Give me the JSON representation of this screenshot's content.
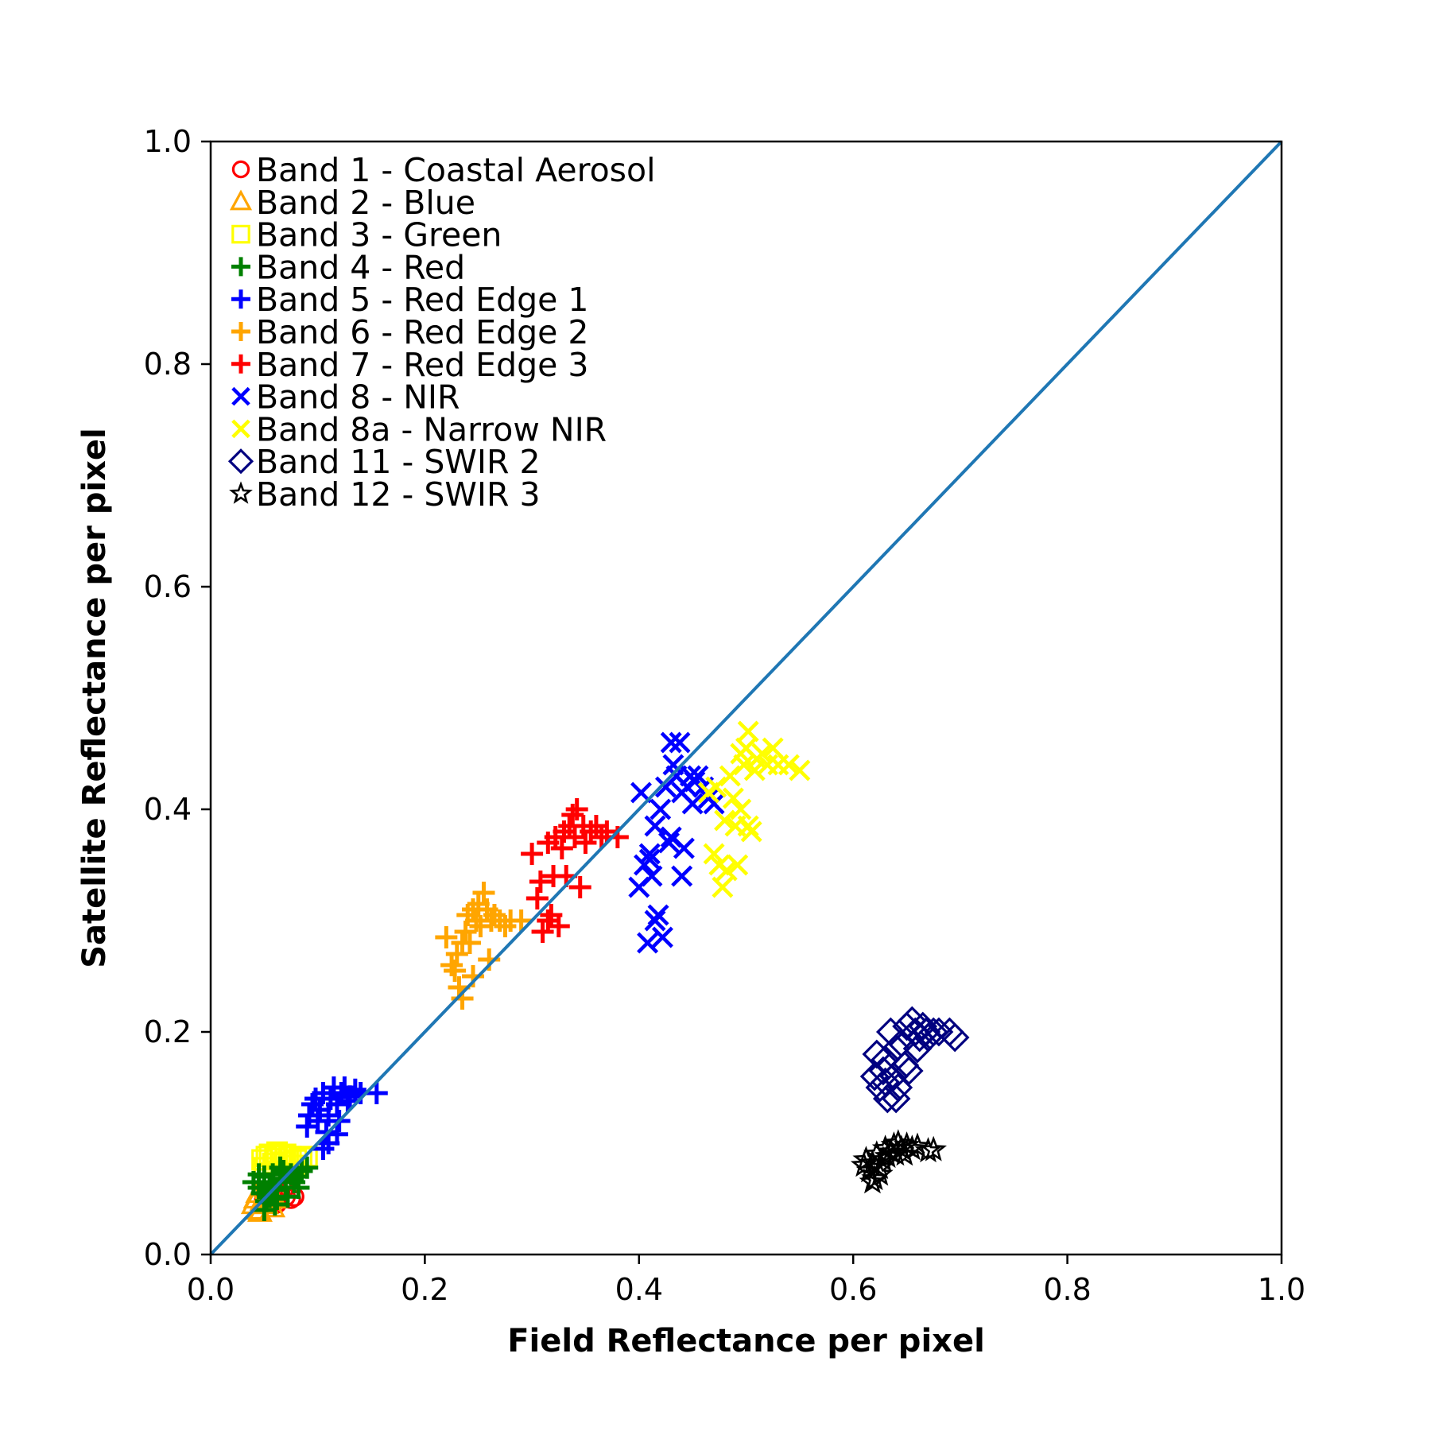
{
  "chart_data": {
    "type": "scatter",
    "title": "",
    "xlabel": "Field Reflectance per pixel",
    "ylabel": "Satellite Reflectance per pixel",
    "xlim": [
      0,
      1
    ],
    "ylim": [
      0,
      1
    ],
    "xticks": [
      "0.0",
      "0.2",
      "0.4",
      "0.6",
      "0.8",
      "1.0"
    ],
    "yticks": [
      "0.0",
      "0.2",
      "0.4",
      "0.6",
      "0.8",
      "1.0"
    ],
    "grid": false,
    "legend_position": "top-left",
    "reference_line": {
      "from": [
        0,
        0
      ],
      "to": [
        1,
        1
      ],
      "color": "#1f77b4"
    },
    "series": [
      {
        "name": "Band 1 - Coastal Aerosol",
        "marker": "circle",
        "color": "#ff0000",
        "points": [
          [
            0.05,
            0.05
          ],
          [
            0.055,
            0.052
          ],
          [
            0.06,
            0.048
          ],
          [
            0.065,
            0.055
          ],
          [
            0.07,
            0.052
          ],
          [
            0.075,
            0.05
          ],
          [
            0.078,
            0.052
          ],
          [
            0.058,
            0.057
          ],
          [
            0.062,
            0.046
          ],
          [
            0.068,
            0.058
          ]
        ]
      },
      {
        "name": "Band 2 - Blue",
        "marker": "triangle",
        "color": "#ffa500",
        "points": [
          [
            0.04,
            0.045
          ],
          [
            0.042,
            0.05
          ],
          [
            0.045,
            0.04
          ],
          [
            0.048,
            0.048
          ],
          [
            0.05,
            0.052
          ],
          [
            0.052,
            0.045
          ],
          [
            0.055,
            0.055
          ],
          [
            0.058,
            0.042
          ],
          [
            0.06,
            0.05
          ],
          [
            0.062,
            0.058
          ],
          [
            0.046,
            0.038
          ],
          [
            0.044,
            0.055
          ]
        ]
      },
      {
        "name": "Band 3 - Green",
        "marker": "square",
        "color": "#ffff00",
        "points": [
          [
            0.048,
            0.085
          ],
          [
            0.052,
            0.088
          ],
          [
            0.055,
            0.09
          ],
          [
            0.06,
            0.086
          ],
          [
            0.065,
            0.089
          ],
          [
            0.07,
            0.09
          ],
          [
            0.075,
            0.088
          ],
          [
            0.08,
            0.085
          ],
          [
            0.085,
            0.087
          ],
          [
            0.05,
            0.078
          ],
          [
            0.058,
            0.082
          ],
          [
            0.068,
            0.083
          ],
          [
            0.078,
            0.08
          ],
          [
            0.09,
            0.088
          ],
          [
            0.062,
            0.092
          ]
        ]
      },
      {
        "name": "Band 4 - Red",
        "marker": "plus",
        "color": "#008000",
        "points": [
          [
            0.04,
            0.065
          ],
          [
            0.045,
            0.06
          ],
          [
            0.048,
            0.055
          ],
          [
            0.05,
            0.07
          ],
          [
            0.052,
            0.048
          ],
          [
            0.055,
            0.062
          ],
          [
            0.058,
            0.072
          ],
          [
            0.06,
            0.058
          ],
          [
            0.062,
            0.05
          ],
          [
            0.065,
            0.068
          ],
          [
            0.068,
            0.075
          ],
          [
            0.07,
            0.06
          ],
          [
            0.072,
            0.052
          ],
          [
            0.075,
            0.072
          ],
          [
            0.078,
            0.065
          ],
          [
            0.08,
            0.07
          ],
          [
            0.085,
            0.075
          ],
          [
            0.09,
            0.078
          ],
          [
            0.05,
            0.04
          ],
          [
            0.055,
            0.052
          ],
          [
            0.06,
            0.045
          ],
          [
            0.065,
            0.078
          ],
          [
            0.07,
            0.068
          ],
          [
            0.082,
            0.06
          ],
          [
            0.045,
            0.072
          ],
          [
            0.058,
            0.065
          ]
        ]
      },
      {
        "name": "Band 5 - Red Edge 1",
        "marker": "plus",
        "color": "#0000ff",
        "points": [
          [
            0.09,
            0.115
          ],
          [
            0.092,
            0.125
          ],
          [
            0.095,
            0.135
          ],
          [
            0.098,
            0.14
          ],
          [
            0.1,
            0.12
          ],
          [
            0.102,
            0.13
          ],
          [
            0.105,
            0.145
          ],
          [
            0.108,
            0.11
          ],
          [
            0.11,
            0.125
          ],
          [
            0.112,
            0.14
          ],
          [
            0.115,
            0.15
          ],
          [
            0.118,
            0.135
          ],
          [
            0.12,
            0.12
          ],
          [
            0.122,
            0.145
          ],
          [
            0.125,
            0.15
          ],
          [
            0.128,
            0.138
          ],
          [
            0.13,
            0.142
          ],
          [
            0.135,
            0.148
          ],
          [
            0.14,
            0.145
          ],
          [
            0.155,
            0.145
          ],
          [
            0.11,
            0.1
          ],
          [
            0.118,
            0.108
          ],
          [
            0.105,
            0.095
          ]
        ]
      },
      {
        "name": "Band 6 - Red Edge 2",
        "marker": "plus",
        "color": "#ffa500",
        "points": [
          [
            0.22,
            0.285
          ],
          [
            0.225,
            0.26
          ],
          [
            0.228,
            0.255
          ],
          [
            0.23,
            0.27
          ],
          [
            0.232,
            0.24
          ],
          [
            0.235,
            0.23
          ],
          [
            0.238,
            0.29
          ],
          [
            0.24,
            0.305
          ],
          [
            0.242,
            0.28
          ],
          [
            0.245,
            0.31
          ],
          [
            0.248,
            0.3
          ],
          [
            0.25,
            0.315
          ],
          [
            0.252,
            0.295
          ],
          [
            0.255,
            0.325
          ],
          [
            0.258,
            0.31
          ],
          [
            0.26,
            0.265
          ],
          [
            0.262,
            0.3
          ],
          [
            0.265,
            0.305
          ],
          [
            0.27,
            0.3
          ],
          [
            0.275,
            0.295
          ],
          [
            0.28,
            0.3
          ],
          [
            0.29,
            0.3
          ],
          [
            0.245,
            0.25
          ],
          [
            0.235,
            0.28
          ]
        ]
      },
      {
        "name": "Band 7 - Red Edge 3",
        "marker": "plus",
        "color": "#ff0000",
        "points": [
          [
            0.3,
            0.36
          ],
          [
            0.305,
            0.32
          ],
          [
            0.308,
            0.335
          ],
          [
            0.31,
            0.29
          ],
          [
            0.315,
            0.37
          ],
          [
            0.318,
            0.305
          ],
          [
            0.32,
            0.34
          ],
          [
            0.322,
            0.375
          ],
          [
            0.325,
            0.295
          ],
          [
            0.328,
            0.365
          ],
          [
            0.33,
            0.38
          ],
          [
            0.332,
            0.34
          ],
          [
            0.335,
            0.385
          ],
          [
            0.338,
            0.395
          ],
          [
            0.34,
            0.375
          ],
          [
            0.342,
            0.4
          ],
          [
            0.345,
            0.33
          ],
          [
            0.348,
            0.385
          ],
          [
            0.35,
            0.37
          ],
          [
            0.355,
            0.38
          ],
          [
            0.36,
            0.385
          ],
          [
            0.365,
            0.375
          ],
          [
            0.37,
            0.38
          ],
          [
            0.38,
            0.375
          ],
          [
            0.315,
            0.3
          ]
        ]
      },
      {
        "name": "Band 8 - NIR",
        "marker": "x",
        "color": "#0000ff",
        "points": [
          [
            0.4,
            0.33
          ],
          [
            0.402,
            0.415
          ],
          [
            0.405,
            0.35
          ],
          [
            0.408,
            0.28
          ],
          [
            0.41,
            0.36
          ],
          [
            0.412,
            0.34
          ],
          [
            0.415,
            0.385
          ],
          [
            0.418,
            0.305
          ],
          [
            0.42,
            0.4
          ],
          [
            0.422,
            0.285
          ],
          [
            0.425,
            0.42
          ],
          [
            0.428,
            0.37
          ],
          [
            0.43,
            0.46
          ],
          [
            0.432,
            0.44
          ],
          [
            0.435,
            0.43
          ],
          [
            0.438,
            0.46
          ],
          [
            0.44,
            0.415
          ],
          [
            0.442,
            0.365
          ],
          [
            0.445,
            0.42
          ],
          [
            0.448,
            0.43
          ],
          [
            0.45,
            0.405
          ],
          [
            0.452,
            0.425
          ],
          [
            0.455,
            0.43
          ],
          [
            0.46,
            0.42
          ],
          [
            0.465,
            0.41
          ],
          [
            0.47,
            0.405
          ],
          [
            0.44,
            0.34
          ],
          [
            0.43,
            0.375
          ],
          [
            0.415,
            0.3
          ],
          [
            0.41,
            0.355
          ]
        ]
      },
      {
        "name": "Band 8a - Narrow NIR",
        "marker": "x",
        "color": "#ffff00",
        "points": [
          [
            0.465,
            0.415
          ],
          [
            0.47,
            0.36
          ],
          [
            0.472,
            0.42
          ],
          [
            0.475,
            0.35
          ],
          [
            0.478,
            0.33
          ],
          [
            0.48,
            0.39
          ],
          [
            0.482,
            0.345
          ],
          [
            0.485,
            0.43
          ],
          [
            0.488,
            0.41
          ],
          [
            0.49,
            0.385
          ],
          [
            0.492,
            0.35
          ],
          [
            0.495,
            0.4
          ],
          [
            0.498,
            0.44
          ],
          [
            0.5,
            0.455
          ],
          [
            0.502,
            0.385
          ],
          [
            0.505,
            0.38
          ],
          [
            0.508,
            0.435
          ],
          [
            0.51,
            0.445
          ],
          [
            0.515,
            0.45
          ],
          [
            0.52,
            0.44
          ],
          [
            0.525,
            0.455
          ],
          [
            0.53,
            0.44
          ],
          [
            0.54,
            0.44
          ],
          [
            0.55,
            0.435
          ],
          [
            0.502,
            0.47
          ],
          [
            0.495,
            0.45
          ]
        ]
      },
      {
        "name": "Band 11 - SWIR 2",
        "marker": "diamond",
        "color": "#000080",
        "points": [
          [
            0.62,
            0.16
          ],
          [
            0.622,
            0.18
          ],
          [
            0.625,
            0.15
          ],
          [
            0.628,
            0.165
          ],
          [
            0.63,
            0.175
          ],
          [
            0.632,
            0.14
          ],
          [
            0.635,
            0.2
          ],
          [
            0.638,
            0.16
          ],
          [
            0.64,
            0.185
          ],
          [
            0.642,
            0.15
          ],
          [
            0.645,
            0.19
          ],
          [
            0.648,
            0.17
          ],
          [
            0.65,
            0.205
          ],
          [
            0.652,
            0.165
          ],
          [
            0.655,
            0.21
          ],
          [
            0.658,
            0.2
          ],
          [
            0.66,
            0.185
          ],
          [
            0.662,
            0.195
          ],
          [
            0.665,
            0.205
          ],
          [
            0.668,
            0.2
          ],
          [
            0.67,
            0.195
          ],
          [
            0.675,
            0.2
          ],
          [
            0.68,
            0.2
          ],
          [
            0.69,
            0.2
          ],
          [
            0.695,
            0.195
          ],
          [
            0.64,
            0.14
          ],
          [
            0.63,
            0.155
          ]
        ]
      },
      {
        "name": "Band 12 - SWIR 3",
        "marker": "star",
        "color": "#000000",
        "points": [
          [
            0.61,
            0.08
          ],
          [
            0.612,
            0.085
          ],
          [
            0.615,
            0.075
          ],
          [
            0.618,
            0.082
          ],
          [
            0.62,
            0.068
          ],
          [
            0.622,
            0.09
          ],
          [
            0.625,
            0.078
          ],
          [
            0.628,
            0.085
          ],
          [
            0.63,
            0.095
          ],
          [
            0.632,
            0.088
          ],
          [
            0.635,
            0.092
          ],
          [
            0.638,
            0.098
          ],
          [
            0.64,
            0.09
          ],
          [
            0.642,
            0.1
          ],
          [
            0.645,
            0.095
          ],
          [
            0.648,
            0.09
          ],
          [
            0.65,
            0.098
          ],
          [
            0.655,
            0.095
          ],
          [
            0.66,
            0.097
          ],
          [
            0.67,
            0.093
          ],
          [
            0.675,
            0.094
          ],
          [
            0.618,
            0.065
          ],
          [
            0.625,
            0.072
          ]
        ]
      }
    ]
  }
}
